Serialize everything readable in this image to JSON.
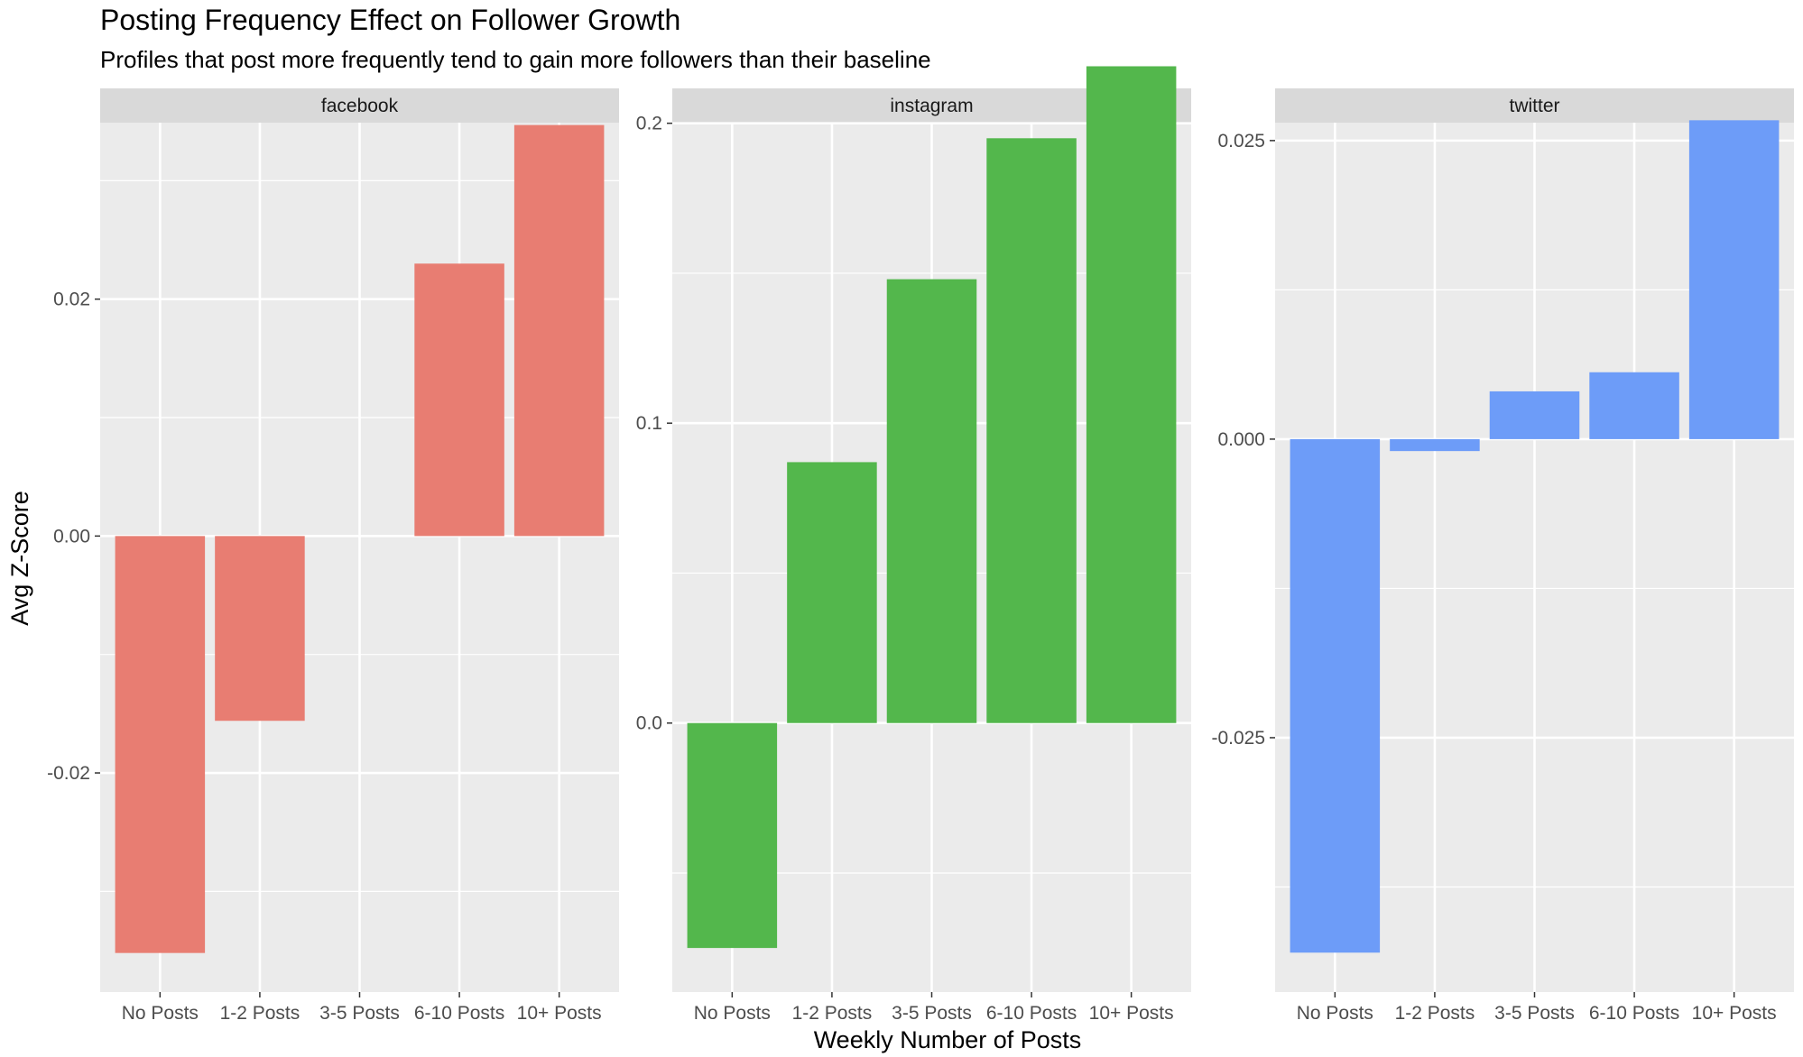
{
  "title": "Posting Frequency Effect on Follower Growth",
  "subtitle": "Profiles that post more frequently tend to gain more followers than their baseline",
  "xlabel": "Weekly Number of Posts",
  "ylabel": "Avg Z-Score",
  "colors": {
    "facebook": "#E87D72",
    "instagram": "#53B74C",
    "twitter": "#6D9CF8",
    "panel_bg": "#EBEBEB",
    "strip_bg": "#D9D9D9",
    "grid": "#FFFFFF"
  },
  "chart_data": [
    {
      "type": "bar",
      "panel": "facebook",
      "categories": [
        "No Posts",
        "1-2 Posts",
        "3-5 Posts",
        "6-10 Posts",
        "10+ Posts"
      ],
      "values": [
        -0.0352,
        -0.0156,
        null,
        0.023,
        0.0347
      ],
      "ylim": [
        -0.0385,
        0.0349
      ],
      "yticks": [
        -0.02,
        0.0,
        0.02
      ],
      "yticklabels": [
        "-0.02",
        "0.00",
        "0.02"
      ],
      "grid": true
    },
    {
      "type": "bar",
      "panel": "instagram",
      "categories": [
        "No Posts",
        "1-2 Posts",
        "3-5 Posts",
        "6-10 Posts",
        "10+ Posts"
      ],
      "values": [
        -0.075,
        0.087,
        0.148,
        0.195,
        0.219
      ],
      "ylim": [
        -0.0897,
        0.2002
      ],
      "yticks": [
        0.0,
        0.1,
        0.2
      ],
      "yticklabels": [
        "0.0",
        "0.1",
        "0.2"
      ],
      "grid": true
    },
    {
      "type": "bar",
      "panel": "twitter",
      "categories": [
        "No Posts",
        "1-2 Posts",
        "3-5 Posts",
        "6-10 Posts",
        "10+ Posts"
      ],
      "values": [
        -0.043,
        -0.001,
        0.004,
        0.0056,
        0.0267
      ],
      "ylim": [
        -0.0463,
        0.0265
      ],
      "yticks": [
        -0.025,
        0.0,
        0.025
      ],
      "yticklabels": [
        "-0.025",
        "0.000",
        "0.025"
      ],
      "grid": true
    }
  ]
}
